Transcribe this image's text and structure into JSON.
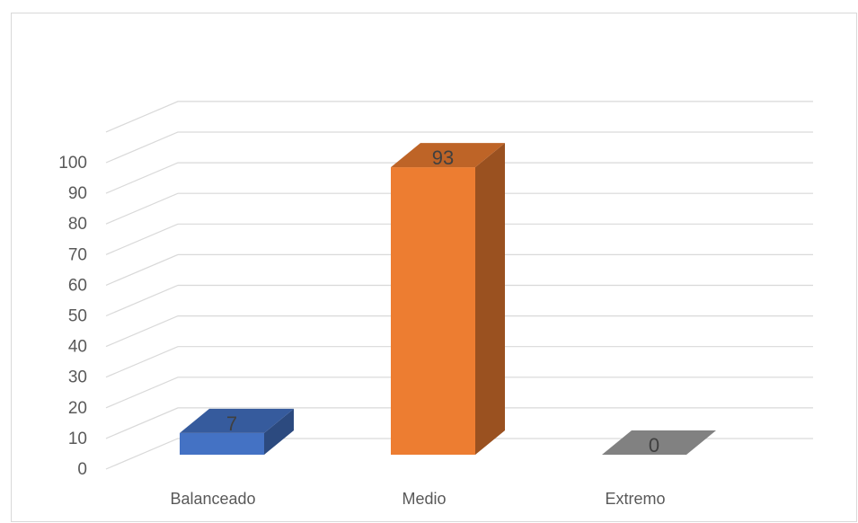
{
  "chart_data": {
    "type": "bar",
    "style": "3d-column",
    "categories": [
      "Balanceado",
      "Medio",
      "Extremo"
    ],
    "values": [
      7,
      93,
      0
    ],
    "data_labels": [
      "7",
      "93",
      "0"
    ],
    "ylim": [
      0,
      100
    ],
    "y_ticks": [
      0,
      10,
      20,
      30,
      40,
      50,
      60,
      70,
      80,
      90,
      100
    ],
    "y_tick_labels": [
      "0",
      "10",
      "20",
      "30",
      "40",
      "50",
      "60",
      "70",
      "80",
      "90",
      "100"
    ],
    "title": "",
    "xlabel": "",
    "ylabel": "",
    "grid": true,
    "legend": "none",
    "colors": [
      "#4472C4",
      "#ED7D31",
      "#A5A5A5"
    ]
  }
}
